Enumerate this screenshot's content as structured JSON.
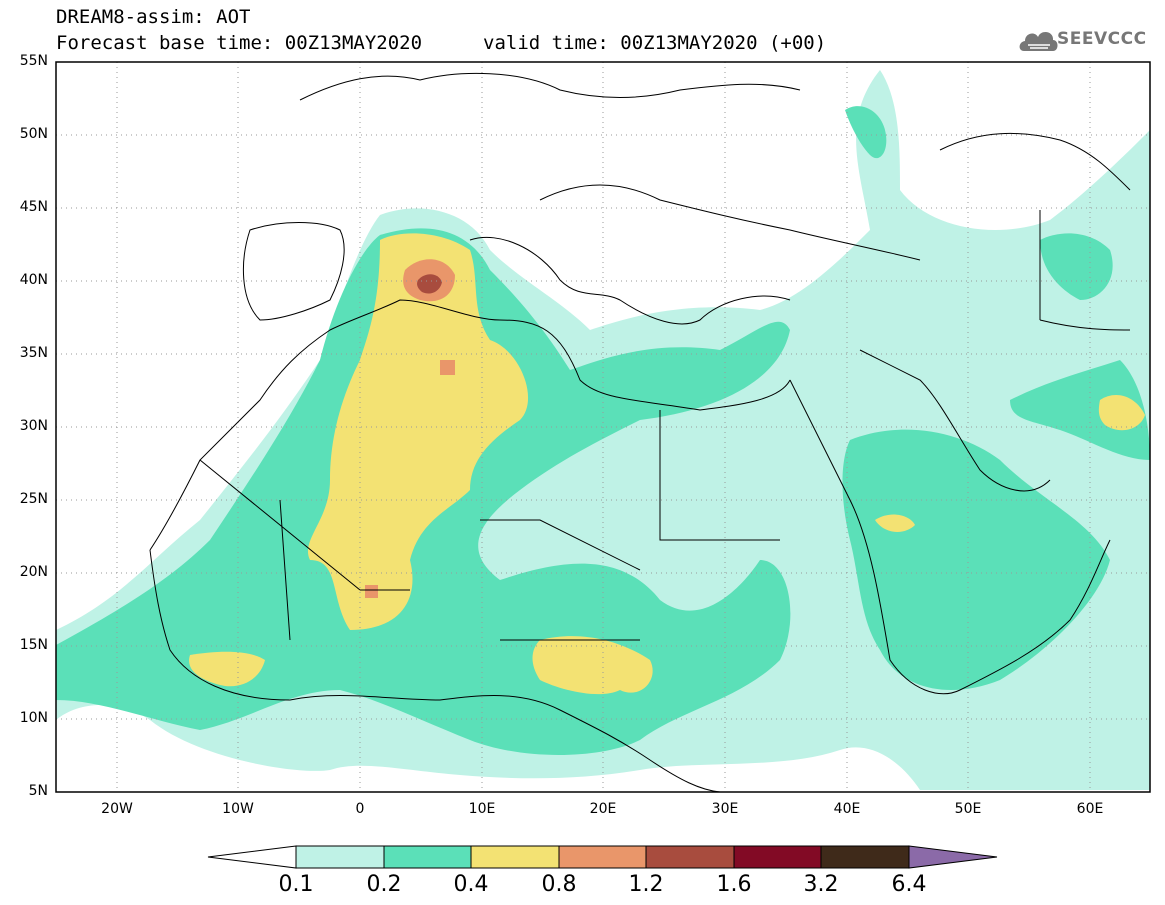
{
  "header": {
    "title": "DREAM8-assim: AOT",
    "base_time": "Forecast base time: 00Z13MAY2020",
    "valid_time": "valid time: 00Z13MAY2020 (+00)",
    "logo_text": "SEEVCCC"
  },
  "map": {
    "extent": {
      "lon_min": -25,
      "lon_max": 65,
      "lat_min": 5,
      "lat_max": 55
    },
    "lat_labels": [
      "55N",
      "50N",
      "45N",
      "40N",
      "35N",
      "30N",
      "25N",
      "20N",
      "15N",
      "10N",
      "5N"
    ],
    "lon_labels": [
      "20W",
      "10W",
      "0",
      "10E",
      "20E",
      "30E",
      "40E",
      "50E",
      "60E"
    ]
  },
  "colorbar": {
    "labels": [
      "0.1",
      "0.2",
      "0.4",
      "0.8",
      "1.2",
      "1.6",
      "3.2",
      "6.4"
    ],
    "colors": [
      "#ffffff",
      "#bff2e6",
      "#5be0b8",
      "#f3e273",
      "#e9966a",
      "#a84c3e",
      "#820a25",
      "#3f2a1a",
      "#8b6aa8"
    ]
  }
}
